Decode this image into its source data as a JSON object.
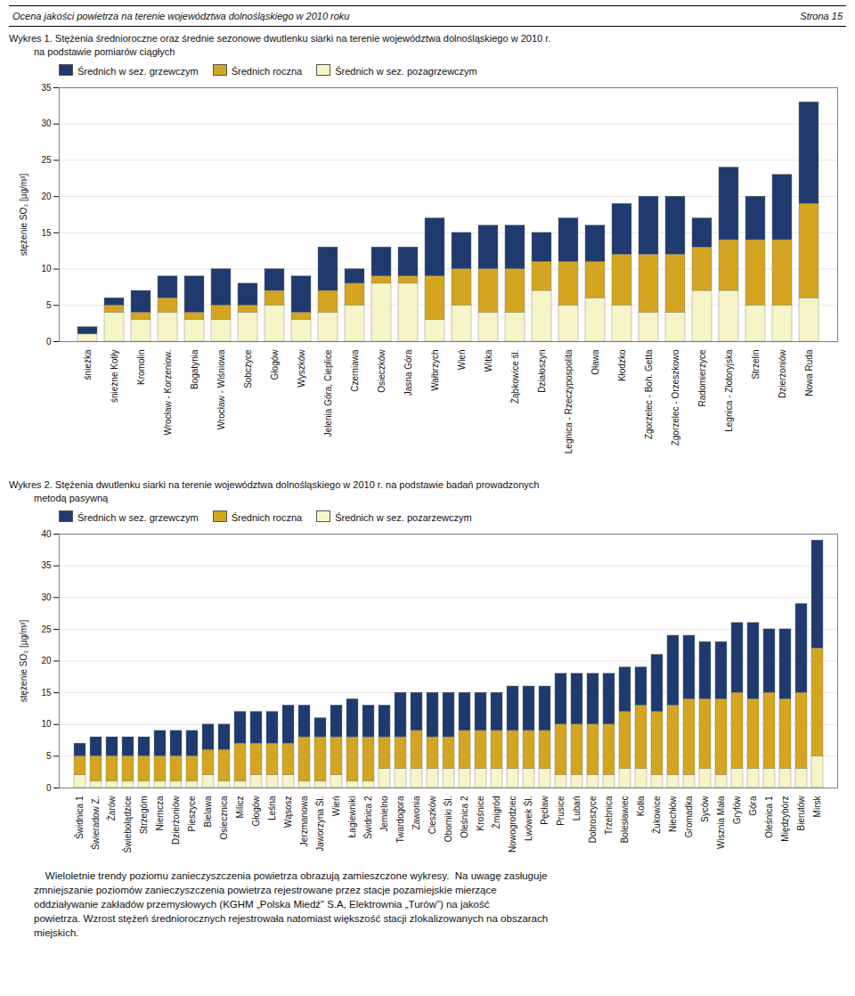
{
  "header": "Ocena jakości powietrza na terenie województwa dolnośląskiego w 2010 roku",
  "page": "Strona 15",
  "chart_data": [
    {
      "type": "bar",
      "stacked": true,
      "grid": true,
      "title": "Wykres 1. Stężenia średnioroczne oraz średnie sezonowe dwutlenku siarki na terenie województwa dolnośląskiego w 2010 r.",
      "subtitle": "na podstawie pomiarów ciągłych",
      "ylabel": "stężenie SO₂ [μg/m³]",
      "ylim": [
        0,
        35
      ],
      "yticks": [
        0,
        5,
        10,
        15,
        20,
        25,
        30,
        35
      ],
      "categories": [
        "śnieżka",
        "śnieżne Kotły",
        "Kromolin",
        "Wrocław - Korzeniow.",
        "Bogatynia",
        "Wrocław - Wiśniowa",
        "Sobczyce",
        "Głogów",
        "Wyszków",
        "Jelenia Góra, Cieplice",
        "Czerniawa",
        "Osieczków",
        "Jasna Góra",
        "Wałbrzych",
        "Wień",
        "Witka",
        "Żąbkowice śl.",
        "Działoszyn",
        "Legnica - Rzeczypospolita",
        "Oława",
        "Kłodzko",
        "Zgorzelec - Boh. Getta",
        "Zgorzelec - Orzeszkowo",
        "Radomierzyce",
        "Legnica - Złotoryjska",
        "Strzelin",
        "Dzierżoniów",
        "Nowa Ruda"
      ],
      "series": [
        {
          "name": "Średnich w sez. grzewczym",
          "color": "#1f3a6e",
          "values": [
            1,
            1,
            3,
            3,
            5,
            5,
            3,
            3,
            5,
            6,
            2,
            4,
            4,
            8,
            5,
            6,
            6,
            4,
            6,
            5,
            7,
            8,
            8,
            4,
            10,
            6,
            9,
            14
          ]
        },
        {
          "name": "Średnich roczna",
          "color": "#d4a520",
          "values": [
            0,
            1,
            1,
            2,
            1,
            2,
            1,
            2,
            1,
            3,
            3,
            1,
            1,
            6,
            5,
            6,
            6,
            4,
            6,
            5,
            7,
            8,
            8,
            6,
            7,
            9,
            9,
            13
          ]
        },
        {
          "name": "Średnich w sez. pozagrzewczym",
          "color": "#f5f5c8",
          "values": [
            1,
            4,
            3,
            4,
            3,
            3,
            4,
            5,
            3,
            4,
            5,
            8,
            8,
            3,
            5,
            4,
            4,
            7,
            5,
            6,
            5,
            4,
            4,
            7,
            7,
            5,
            5,
            6
          ]
        }
      ]
    },
    {
      "type": "bar",
      "stacked": true,
      "grid": true,
      "title": "Wykres 2. Stężenia dwutlenku siarki na terenie województwa dolnośląskiego w 2010 r. na podstawie badań prowadzonych",
      "subtitle": "metodą pasywną",
      "ylabel": "stężenie SO₂ [μg/m³]",
      "ylim": [
        0,
        40
      ],
      "yticks": [
        0,
        5,
        10,
        15,
        20,
        25,
        30,
        35,
        40
      ],
      "categories": [
        "Świdnica 1",
        "Świeradow Z.",
        "Żarów",
        "Świebolądzice",
        "Strzegóm",
        "Niemcza",
        "Dzierżoniów",
        "Pieszyce",
        "Bielawa",
        "Osiecznica",
        "Milicz",
        "Głogów",
        "Leśna",
        "Wąsosz",
        "Jerzmanowa",
        "Jaworzyna Śl.",
        "Wień",
        "Łagiewniki",
        "Świdnica 2",
        "Jemielno",
        "Twardogora",
        "Zawonia",
        "Cieszków",
        "Oborniki Śl.",
        "Oleśnica 2",
        "Krośnice",
        "Żmigród",
        "Nowogrodziec",
        "Lwówek Śl.",
        "Pęcław",
        "Prusice",
        "Lubań",
        "Dobroszyce",
        "Trzebnica",
        "Bolesławiec",
        "Kotła",
        "Żukowice",
        "Niechłów",
        "Gromadka",
        "Syców",
        "Wisznia Mała",
        "Gryfów",
        "Góra",
        "Oleśnica 1",
        "Międzybórz",
        "Bierutów",
        "Mirsk"
      ],
      "series": [
        {
          "name": "Średnich w sez. grzewczym",
          "color": "#1f3a6e",
          "values": [
            2,
            3,
            3,
            3,
            3,
            4,
            4,
            4,
            4,
            4,
            5,
            5,
            5,
            6,
            5,
            3,
            5,
            6,
            5,
            5,
            7,
            6,
            7,
            7,
            6,
            6,
            6,
            7,
            7,
            7,
            8,
            8,
            8,
            8,
            7,
            6,
            9,
            11,
            10,
            9,
            9,
            11,
            12,
            10,
            11,
            14,
            17
          ]
        },
        {
          "name": "Średnich roczna",
          "color": "#d4a520",
          "values": [
            3,
            4,
            4,
            4,
            4,
            4,
            4,
            4,
            4,
            5,
            6,
            5,
            5,
            5,
            7,
            7,
            6,
            7,
            7,
            5,
            5,
            6,
            5,
            5,
            6,
            6,
            6,
            6,
            6,
            6,
            8,
            8,
            8,
            8,
            9,
            10,
            10,
            11,
            12,
            11,
            12,
            12,
            11,
            12,
            11,
            12,
            17
          ]
        },
        {
          "name": "Średnich w sez. pozarzewczym",
          "color": "#f5f5c8",
          "values": [
            2,
            1,
            1,
            1,
            1,
            1,
            1,
            1,
            2,
            1,
            1,
            2,
            2,
            2,
            1,
            1,
            2,
            1,
            1,
            3,
            3,
            3,
            3,
            3,
            3,
            3,
            3,
            3,
            3,
            3,
            2,
            2,
            2,
            2,
            3,
            3,
            2,
            2,
            2,
            3,
            2,
            3,
            3,
            3,
            3,
            3,
            5
          ]
        }
      ]
    }
  ],
  "footer": [
    "    Wieloletnie trendy poziomu zanieczyszczenia powietrza obrazują zamieszczone wykresy.  Na uwagę zasługuje",
    "zmniejszanie poziomów zanieczyszczenia powietrza rejestrowane przez stacje pozamiejskie mierzące",
    "oddziaływanie zakładów przemysłowych (KGHM „Polska Miedź” S.A, Elektrownia „Turów”) na jakość",
    "powietrza. Wzrost stężeń średniorocznych rejestrowała natomiast większość stacji zlokalizowanych na obszarach",
    "miejskich."
  ]
}
